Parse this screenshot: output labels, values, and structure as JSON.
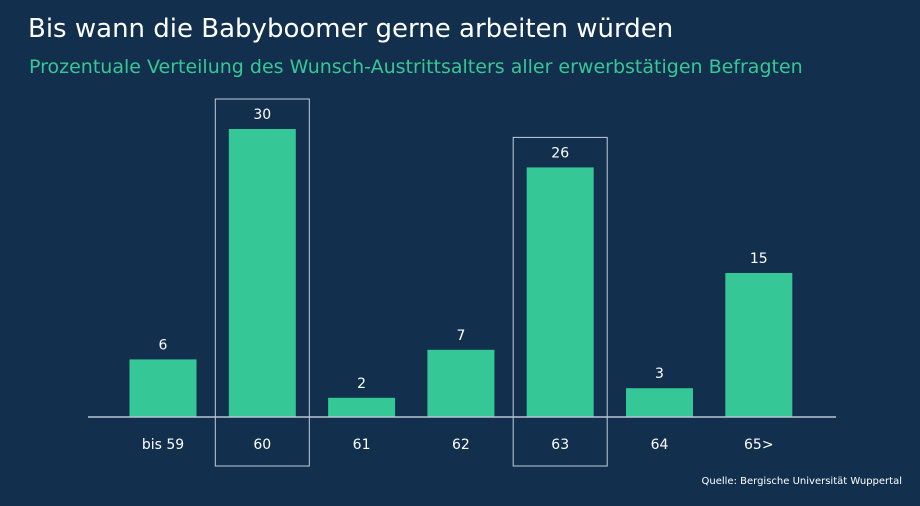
{
  "title": "Bis wann die Babyboomer gerne arbeiten würden",
  "subtitle": "Prozentuale Verteilung des Wunsch-Austrittsalters aller erwerbstätigen Befragten",
  "source": "Quelle: Bergische Universität Wuppertal",
  "colors": {
    "background": "#12304e",
    "bar": "#35c795",
    "text": "#ffffff",
    "accent": "#35c795"
  },
  "chart_data": {
    "type": "bar",
    "categories": [
      "bis 59",
      "60",
      "61",
      "62",
      "63",
      "64",
      "65>"
    ],
    "values": [
      6,
      30,
      2,
      7,
      26,
      3,
      15
    ],
    "highlighted": [
      "60",
      "63"
    ],
    "title": "Bis wann die Babyboomer gerne arbeiten würden",
    "subtitle": "Prozentuale Verteilung des Wunsch-Austrittsalters aller erwerbstätigen Befragten",
    "xlabel": "",
    "ylabel": "",
    "ylim": [
      0,
      30
    ],
    "grid": false,
    "legend": "none",
    "data_labels": true
  }
}
